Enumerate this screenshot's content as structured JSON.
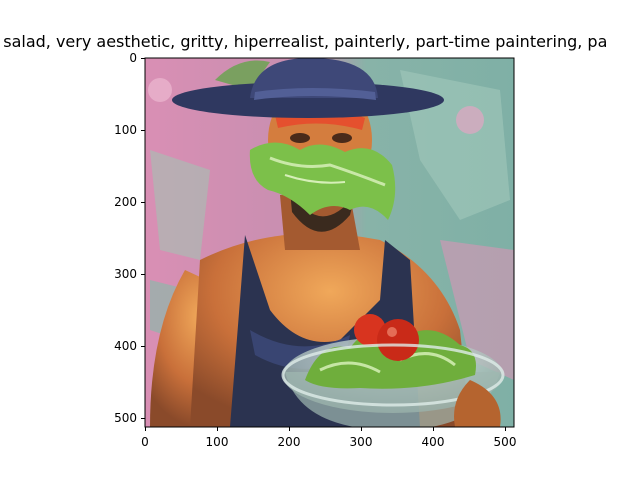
{
  "figure": {
    "title": "n salad,  very aesthetic, gritty, hiperrealist, painterly, part-time paintering, pa"
  },
  "image_axes": {
    "x_ticks": [
      "0",
      "100",
      "200",
      "300",
      "400",
      "500"
    ],
    "y_ticks": [
      "0",
      "100",
      "200",
      "300",
      "400",
      "500"
    ],
    "x_range": [
      0,
      512
    ],
    "y_range": [
      0,
      512
    ]
  },
  "image": {
    "subject": "painted portrait of a muscular man in a dark wide-brimmed hat and navy tank top, face covered by green lettuce, holding a glass bowl of salad with tomatoes",
    "colors": {
      "background_pink": "#d98fb4",
      "background_teal": "#7fb0a6",
      "hat": "#3b4470",
      "tank_top": "#2b3350",
      "skin": "#d98a4a",
      "lettuce": "#6fae3c",
      "tomato": "#d8341f"
    }
  }
}
